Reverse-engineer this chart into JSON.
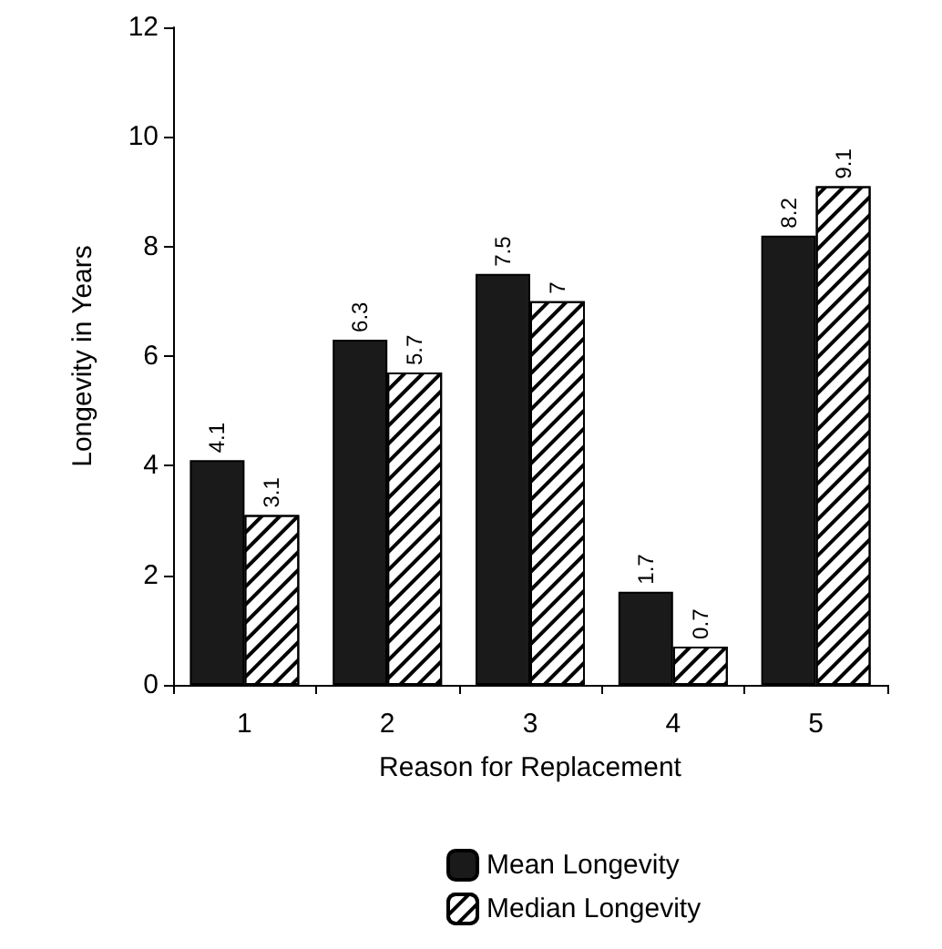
{
  "chart_data": {
    "type": "bar",
    "xlabel": "Reason for Replacement",
    "ylabel": "Longevity in Years",
    "categories": [
      "1",
      "2",
      "3",
      "4",
      "5"
    ],
    "series": [
      {
        "name": "Mean Longevity",
        "color": "#1a1a1a",
        "values": [
          4.1,
          6.3,
          7.5,
          1.7,
          8.2
        ]
      },
      {
        "name": "Median Longevity",
        "color": "#ffffff",
        "values": [
          3.1,
          5.7,
          7,
          0.7,
          9.1
        ]
      }
    ],
    "ylim": [
      0,
      12
    ],
    "yticks": [
      0,
      2,
      4,
      6,
      8,
      10,
      12
    ],
    "grid": false,
    "legend": "bottom",
    "data_labels": true
  }
}
